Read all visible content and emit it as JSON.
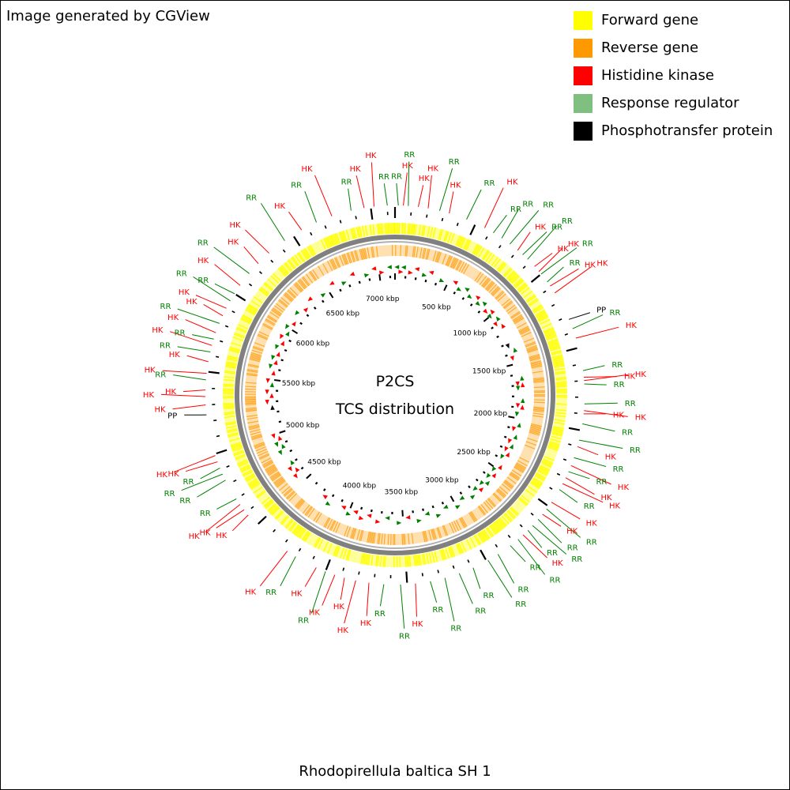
{
  "header": {
    "text": "Image generated by CGView"
  },
  "footer": {
    "organism": "Rhodopirellula baltica SH 1"
  },
  "center": {
    "title": "P2CS",
    "subtitle": "TCS distribution"
  },
  "legend": [
    {
      "label": "Forward gene",
      "color": "#ffff00"
    },
    {
      "label": "Reverse gene",
      "color": "#ff9900"
    },
    {
      "label": "Histidine kinase",
      "color": "#ff0000"
    },
    {
      "label": "Response regulator",
      "color": "#7fbf7f"
    },
    {
      "label": "Phosphotransfer protein",
      "color": "#000000"
    }
  ],
  "colors": {
    "forward": "#ffff00",
    "reverse": "#ff9900",
    "hk": "#ff0000",
    "rr": "#008000",
    "pp": "#000000",
    "backbone": "#808080"
  },
  "chart_data": {
    "type": "circular-genome-map",
    "genome_length_kbp": 7146,
    "tick_labels_kbp": [
      500,
      1000,
      1500,
      2000,
      2500,
      3000,
      3500,
      4000,
      4500,
      5000,
      5500,
      6000,
      6500,
      7000
    ],
    "tick_label_suffix": " kbp",
    "feature_labels": [
      {
        "pos": 20,
        "type": "RR"
      },
      {
        "pos": 50,
        "type": "HK"
      },
      {
        "pos": 80,
        "type": "RR"
      },
      {
        "pos": 140,
        "type": "HK"
      },
      {
        "pos": 200,
        "type": "HK"
      },
      {
        "pos": 270,
        "type": "RR"
      },
      {
        "pos": 330,
        "type": "HK"
      },
      {
        "pos": 440,
        "type": "RR"
      },
      {
        "pos": 560,
        "type": "HK"
      },
      {
        "pos": 620,
        "type": "RR"
      },
      {
        "pos": 680,
        "type": "RR"
      },
      {
        "pos": 740,
        "type": "RR"
      },
      {
        "pos": 800,
        "type": "HK"
      },
      {
        "pos": 840,
        "type": "RR"
      },
      {
        "pos": 880,
        "type": "RR"
      },
      {
        "pos": 940,
        "type": "HK"
      },
      {
        "pos": 980,
        "type": "HK"
      },
      {
        "pos": 1000,
        "type": "RR"
      },
      {
        "pos": 1060,
        "type": "RR"
      },
      {
        "pos": 1090,
        "type": "HK"
      },
      {
        "pos": 1140,
        "type": "HK"
      },
      {
        "pos": 1320,
        "type": "PP"
      },
      {
        "pos": 1380,
        "type": "RR"
      },
      {
        "pos": 1440,
        "type": "HK"
      },
      {
        "pos": 1640,
        "type": "RR"
      },
      {
        "pos": 1680,
        "type": "HK"
      },
      {
        "pos": 1700,
        "type": "HK"
      },
      {
        "pos": 1720,
        "type": "RR"
      },
      {
        "pos": 1840,
        "type": "RR"
      },
      {
        "pos": 1880,
        "type": "HK"
      },
      {
        "pos": 1900,
        "type": "HK"
      },
      {
        "pos": 1960,
        "type": "RR"
      },
      {
        "pos": 2060,
        "type": "RR"
      },
      {
        "pos": 2100,
        "type": "HK"
      },
      {
        "pos": 2170,
        "type": "RR"
      },
      {
        "pos": 2220,
        "type": "HK"
      },
      {
        "pos": 2260,
        "type": "RR"
      },
      {
        "pos": 2300,
        "type": "HK"
      },
      {
        "pos": 2340,
        "type": "HK"
      },
      {
        "pos": 2380,
        "type": "RR"
      },
      {
        "pos": 2470,
        "type": "HK"
      },
      {
        "pos": 2520,
        "type": "RR"
      },
      {
        "pos": 2560,
        "type": "HK"
      },
      {
        "pos": 2600,
        "type": "RR"
      },
      {
        "pos": 2650,
        "type": "RR"
      },
      {
        "pos": 2690,
        "type": "RR"
      },
      {
        "pos": 2730,
        "type": "HK"
      },
      {
        "pos": 2770,
        "type": "RR"
      },
      {
        "pos": 2830,
        "type": "RR"
      },
      {
        "pos": 2920,
        "type": "RR"
      },
      {
        "pos": 2990,
        "type": "RR"
      },
      {
        "pos": 3090,
        "type": "RR"
      },
      {
        "pos": 3180,
        "type": "RR"
      },
      {
        "pos": 3270,
        "type": "RR"
      },
      {
        "pos": 3360,
        "type": "RR"
      },
      {
        "pos": 3450,
        "type": "HK"
      },
      {
        "pos": 3540,
        "type": "RR"
      },
      {
        "pos": 3640,
        "type": "RR"
      },
      {
        "pos": 3730,
        "type": "HK"
      },
      {
        "pos": 3810,
        "type": "HK"
      },
      {
        "pos": 3880,
        "type": "HK"
      },
      {
        "pos": 3940,
        "type": "HK"
      },
      {
        "pos": 4000,
        "type": "RR"
      },
      {
        "pos": 4060,
        "type": "HK"
      },
      {
        "pos": 4200,
        "type": "RR"
      },
      {
        "pos": 4260,
        "type": "HK"
      },
      {
        "pos": 4580,
        "type": "HK"
      },
      {
        "pos": 4620,
        "type": "HK"
      },
      {
        "pos": 4660,
        "type": "HK"
      },
      {
        "pos": 4700,
        "type": "RR"
      },
      {
        "pos": 4830,
        "type": "RR"
      },
      {
        "pos": 4870,
        "type": "RR"
      },
      {
        "pos": 4910,
        "type": "RR"
      },
      {
        "pos": 4950,
        "type": "HK"
      },
      {
        "pos": 4990,
        "type": "HK"
      },
      {
        "pos": 5240,
        "type": "PP"
      },
      {
        "pos": 5300,
        "type": "HK"
      },
      {
        "pos": 5350,
        "type": "HK"
      },
      {
        "pos": 5390,
        "type": "HK"
      },
      {
        "pos": 5450,
        "type": "RR"
      },
      {
        "pos": 5490,
        "type": "HK"
      },
      {
        "pos": 5560,
        "type": "HK"
      },
      {
        "pos": 5620,
        "type": "RR"
      },
      {
        "pos": 5660,
        "type": "HK"
      },
      {
        "pos": 5700,
        "type": "RR"
      },
      {
        "pos": 5740,
        "type": "HK"
      },
      {
        "pos": 5800,
        "type": "RR"
      },
      {
        "pos": 5850,
        "type": "HK"
      },
      {
        "pos": 5900,
        "type": "HK"
      },
      {
        "pos": 5950,
        "type": "RR"
      },
      {
        "pos": 6000,
        "type": "RR"
      },
      {
        "pos": 6060,
        "type": "HK"
      },
      {
        "pos": 6150,
        "type": "RR"
      },
      {
        "pos": 6230,
        "type": "HK"
      },
      {
        "pos": 6320,
        "type": "HK"
      },
      {
        "pos": 6440,
        "type": "RR"
      },
      {
        "pos": 6560,
        "type": "HK"
      },
      {
        "pos": 6660,
        "type": "RR"
      },
      {
        "pos": 6760,
        "type": "HK"
      },
      {
        "pos": 6880,
        "type": "RR"
      },
      {
        "pos": 6960,
        "type": "HK"
      },
      {
        "pos": 7020,
        "type": "HK"
      },
      {
        "pos": 7100,
        "type": "RR"
      }
    ]
  }
}
